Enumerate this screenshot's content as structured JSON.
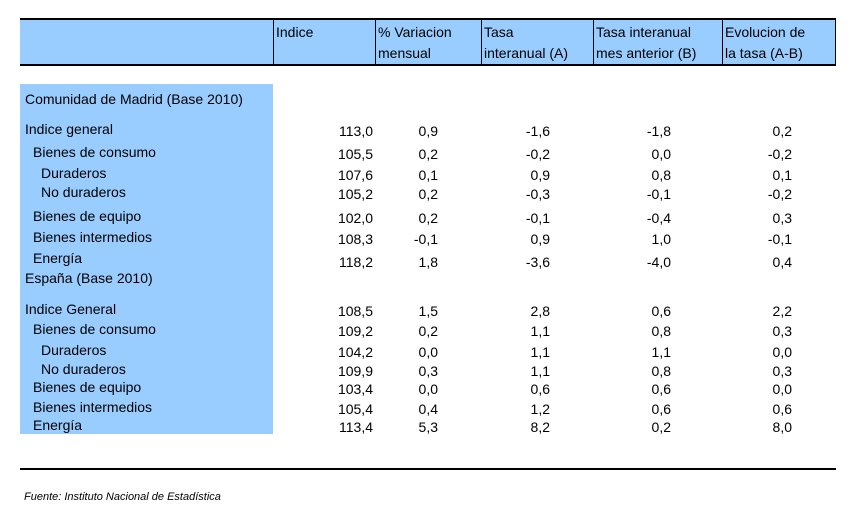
{
  "header": {
    "label_col": "",
    "indice": "Indice",
    "var_mensual": [
      "% Variacion",
      "mensual"
    ],
    "tasa_interanual": [
      "Tasa",
      "interanual (A)"
    ],
    "tasa_mes_anterior": [
      "Tasa interanual",
      "mes anterior (B)"
    ],
    "evolucion": [
      "Evolucion de",
      "la tasa (A-B)"
    ]
  },
  "sections": [
    {
      "title": "Comunidad de Madrid (Base 2010)",
      "rows": [
        {
          "label": "Indice general",
          "indent": 0,
          "values": [
            "113,0",
            "0,9",
            "-1,6",
            "-1,8",
            "0,2"
          ]
        },
        {
          "label": "Bienes de consumo",
          "indent": 1,
          "values": [
            "105,5",
            "0,2",
            "-0,2",
            "0,0",
            "-0,2"
          ]
        },
        {
          "label": "Duraderos",
          "indent": 2,
          "values": [
            "107,6",
            "0,1",
            "0,9",
            "0,8",
            "0,1"
          ]
        },
        {
          "label": "No duraderos",
          "indent": 2,
          "values": [
            "105,2",
            "0,2",
            "-0,3",
            "-0,1",
            "-0,2"
          ]
        },
        {
          "label": "Bienes de equipo",
          "indent": 1,
          "values": [
            "102,0",
            "0,2",
            "-0,1",
            "-0,4",
            "0,3"
          ]
        },
        {
          "label": "Bienes intermedios",
          "indent": 1,
          "values": [
            "108,3",
            "-0,1",
            "0,9",
            "1,0",
            "-0,1"
          ]
        },
        {
          "label": "Energía",
          "indent": 1,
          "values": [
            "118,2",
            "1,8",
            "-3,6",
            "-4,0",
            "0,4"
          ]
        }
      ]
    },
    {
      "title": "España (Base 2010)",
      "rows": [
        {
          "label": "Indice General",
          "indent": 0,
          "values": [
            "108,5",
            "1,5",
            "2,8",
            "0,6",
            "2,2"
          ]
        },
        {
          "label": "Bienes de consumo",
          "indent": 1,
          "values": [
            "109,2",
            "0,2",
            "1,1",
            "0,8",
            "0,3"
          ]
        },
        {
          "label": "Duraderos",
          "indent": 2,
          "values": [
            "104,2",
            "0,0",
            "1,1",
            "1,1",
            "0,0"
          ]
        },
        {
          "label": "No duraderos",
          "indent": 2,
          "values": [
            "109,9",
            "0,3",
            "1,1",
            "0,8",
            "0,3"
          ]
        },
        {
          "label": "Bienes de equipo",
          "indent": 1,
          "values": [
            "103,4",
            "0,0",
            "0,6",
            "0,6",
            "0,0"
          ]
        },
        {
          "label": "Bienes intermedios",
          "indent": 1,
          "values": [
            "105,4",
            "0,4",
            "1,2",
            "0,6",
            "0,6"
          ]
        },
        {
          "label": "Energía",
          "indent": 1,
          "values": [
            "113,4",
            "5,3",
            "8,2",
            "0,2",
            "8,0"
          ]
        }
      ]
    }
  ],
  "source": "Fuente: Instituto Nacional de Estadística",
  "colors": {
    "header_bg": "#99ccff",
    "label_bg": "#99ccff"
  }
}
